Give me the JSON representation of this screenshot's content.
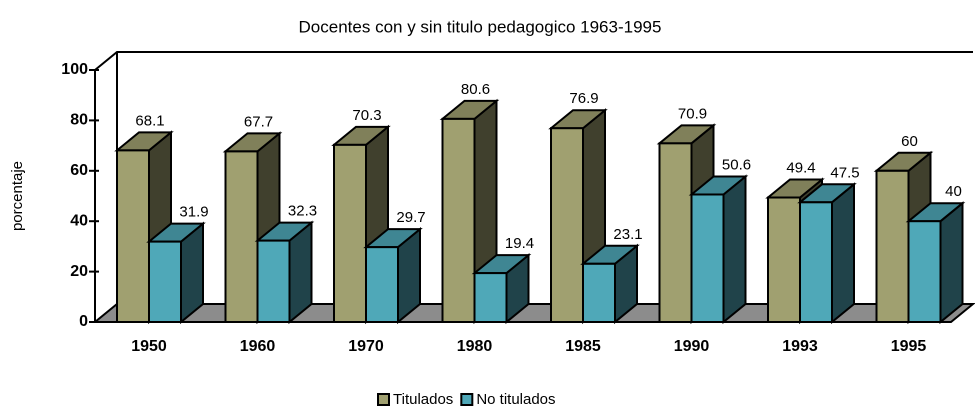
{
  "chart_data": {
    "type": "bar3d",
    "title": "Docentes con y sin titulo pedagogico 1963-1995",
    "y_label": "porcentaje",
    "categories": [
      "1950",
      "1960",
      "1970",
      "1980",
      "1985",
      "1990",
      "1993",
      "1995"
    ],
    "series": [
      {
        "name": "Titulados",
        "color": "#a0a070",
        "values": [
          68.1,
          67.7,
          70.3,
          80.6,
          76.9,
          70.9,
          49.4,
          60
        ]
      },
      {
        "name": "No titulados",
        "color": "#4fa8b8",
        "values": [
          31.9,
          32.3,
          29.7,
          19.4,
          23.1,
          50.6,
          47.5,
          40
        ]
      }
    ],
    "ylim": [
      0,
      100
    ],
    "yticks": [
      0,
      20,
      40,
      60,
      80,
      100
    ],
    "legend": "bottom"
  }
}
